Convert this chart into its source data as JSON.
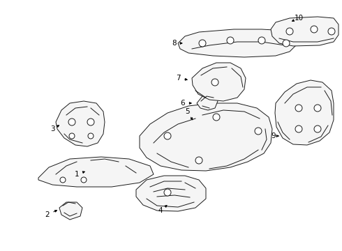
{
  "background_color": "#ffffff",
  "line_color": "#1a1a1a",
  "fill_color": "#ffffff",
  "fig_width": 4.9,
  "fig_height": 3.6,
  "dpi": 100
}
